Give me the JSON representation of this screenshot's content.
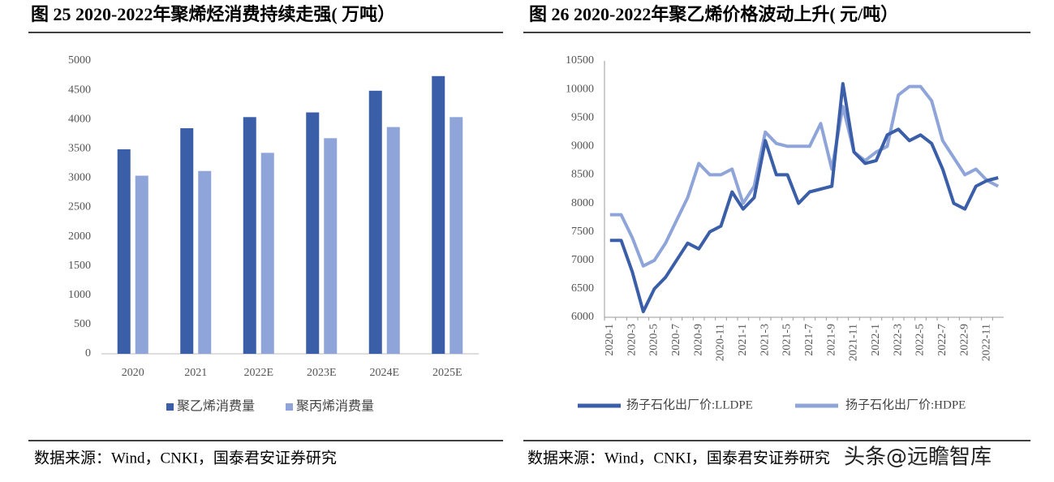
{
  "chart_data": [
    {
      "type": "bar",
      "title": "图 25 2020-2022年聚烯烃消费持续走强( 万吨）",
      "categories": [
        "2020",
        "2021",
        "2022E",
        "2023E",
        "2024E",
        "2025E"
      ],
      "series": [
        {
          "name": "聚乙烯消费量",
          "color": "#3a5ea8",
          "values": [
            3490,
            3850,
            4040,
            4120,
            4490,
            4740
          ]
        },
        {
          "name": "聚丙烯消费量",
          "color": "#8fa5d9",
          "values": [
            3040,
            3120,
            3430,
            3680,
            3870,
            4040
          ]
        }
      ],
      "ylim": [
        0,
        5000
      ],
      "yticks": [
        0,
        500,
        1000,
        1500,
        2000,
        2500,
        3000,
        3500,
        4000,
        4500,
        5000
      ],
      "grid": false,
      "legend": "bottom",
      "source": "数据来源：Wind，CNKI，国泰君安证券研究"
    },
    {
      "type": "line",
      "title": "图 26 2020-2022年聚乙烯价格波动上升( 元/吨）",
      "categories": [
        "2020-1",
        null,
        "2020-3",
        null,
        "2020-5",
        null,
        "2020-7",
        null,
        "2020-9",
        null,
        "2020-11",
        null,
        "2021-1",
        null,
        "2021-3",
        null,
        "2021-5",
        null,
        "2021-7",
        null,
        "2021-9",
        null,
        "2021-11",
        null,
        "2022-1",
        null,
        "2022-3",
        null,
        "2022-5",
        null,
        "2022-7",
        null,
        "2022-9",
        null,
        "2022-11",
        null
      ],
      "series": [
        {
          "name": "扬子石化出厂价:LLDPE",
          "color": "#3a5ea8",
          "values": [
            7350,
            7350,
            6800,
            6100,
            6500,
            6700,
            7000,
            7300,
            7200,
            7500,
            7600,
            8200,
            7900,
            8100,
            9100,
            8500,
            8500,
            8000,
            8200,
            8250,
            8300,
            10100,
            8900,
            8700,
            8750,
            9200,
            9300,
            9100,
            9200,
            9050,
            8600,
            8000,
            7900,
            8300,
            8400,
            8450
          ]
        },
        {
          "name": "扬子石化出厂价:HDPE",
          "color": "#8fa5d9",
          "values": [
            7800,
            7800,
            7400,
            6900,
            7000,
            7300,
            7700,
            8100,
            8700,
            8500,
            8500,
            8600,
            8000,
            8300,
            9250,
            9050,
            9000,
            9000,
            9000,
            9400,
            8600,
            9700,
            8900,
            8750,
            8900,
            9000,
            9900,
            10050,
            10050,
            9800,
            9100,
            8800,
            8500,
            8600,
            8400,
            8300
          ]
        }
      ],
      "ylim": [
        6000,
        10500
      ],
      "yticks": [
        6000,
        6500,
        7000,
        7500,
        8000,
        8500,
        9000,
        9500,
        10000,
        10500
      ],
      "grid": false,
      "legend": "bottom",
      "source": "数据来源：Wind，CNKI，国泰君安证券研究"
    }
  ],
  "watermark": "头条@远瞻智库"
}
